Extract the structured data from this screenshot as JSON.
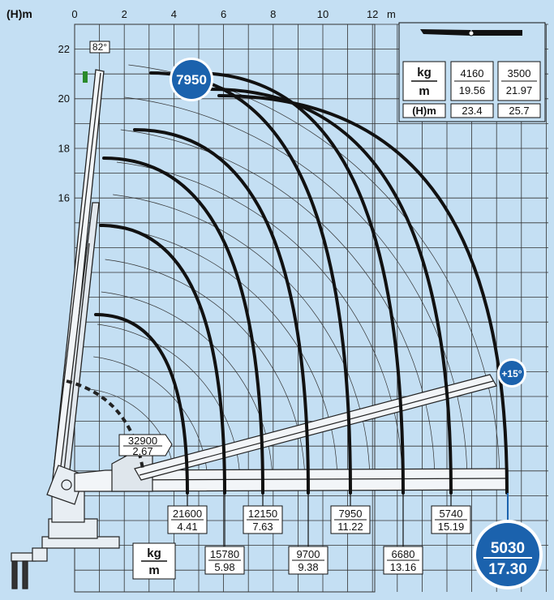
{
  "axes": {
    "y_unit_label": "(H)m",
    "x_unit": "m",
    "x_ticks": [
      "0",
      "2",
      "4",
      "6",
      "8",
      "10",
      "12"
    ],
    "y_ticks": [
      "22",
      "20",
      "18",
      "16"
    ]
  },
  "angle_label": "82°",
  "extension_angle_label": "+15°",
  "max_load_badge": "7950",
  "jib_table": {
    "kg_label": "kg",
    "m_label": "m",
    "h_label": "(H)m",
    "loads": [
      {
        "kg": "4160",
        "m": "19.56",
        "h": "23.4"
      },
      {
        "kg": "3500",
        "m": "21.97",
        "h": "25.7"
      }
    ]
  },
  "legend": {
    "kg_label": "kg",
    "m_label": "m"
  },
  "inner_load": {
    "kg": "32900",
    "m": "2.67"
  },
  "loads": [
    {
      "kg": "21600",
      "m": "4.41"
    },
    {
      "kg": "15780",
      "m": "5.98"
    },
    {
      "kg": "12150",
      "m": "7.63"
    },
    {
      "kg": "9700",
      "m": "9.38"
    },
    {
      "kg": "7950",
      "m": "11.22"
    },
    {
      "kg": "6680",
      "m": "13.16"
    },
    {
      "kg": "5740",
      "m": "15.19"
    }
  ],
  "final_load": {
    "kg": "5030",
    "m": "17.30"
  },
  "colors": {
    "background": "#c4dff3",
    "grid": "#333333",
    "accent": "#1b62ad",
    "curve": "#111111"
  }
}
